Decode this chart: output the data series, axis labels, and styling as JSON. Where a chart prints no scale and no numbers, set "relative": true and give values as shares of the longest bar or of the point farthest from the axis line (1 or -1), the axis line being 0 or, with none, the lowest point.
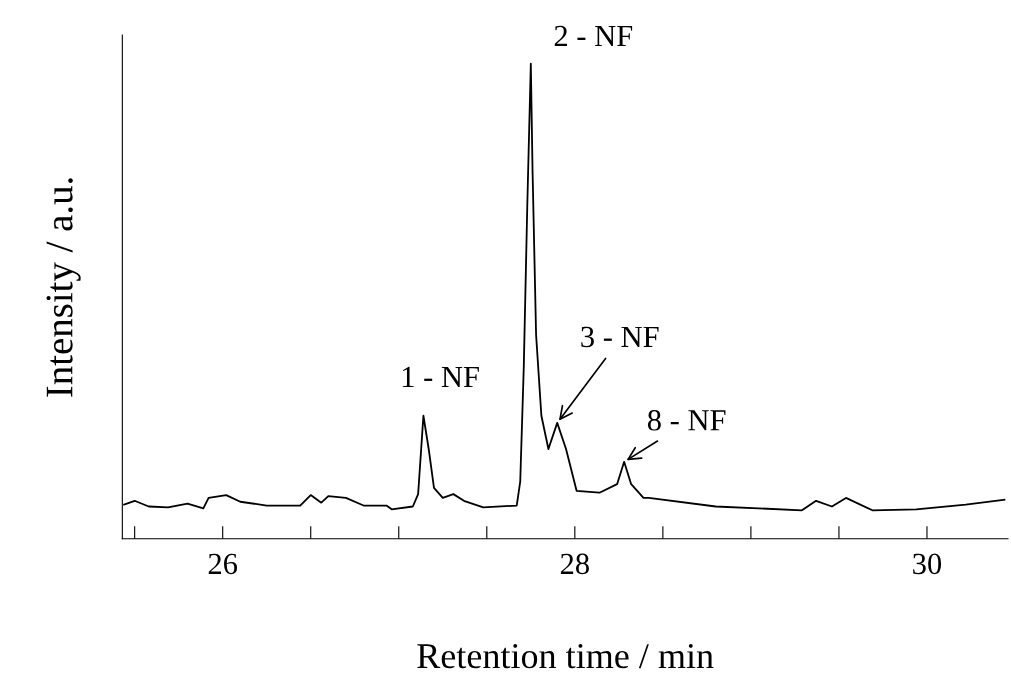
{
  "chart_data": {
    "type": "line",
    "relative": true,
    "xlabel": "Retention time / min",
    "ylabel": "Intensity / a.u.",
    "xlim": [
      25.43,
      30.46
    ],
    "xticks": [
      {
        "value": 25.5,
        "label": null
      },
      26,
      {
        "value": 26.5,
        "label": null
      },
      {
        "value": 27,
        "label": null
      },
      {
        "value": 27.5,
        "label": null
      },
      28,
      {
        "value": 28.5,
        "label": null
      },
      {
        "value": 29,
        "label": null
      },
      {
        "value": 29.5,
        "label": null
      },
      30
    ],
    "tick_labels": "x",
    "grid": false,
    "legend": false,
    "marker": "none",
    "line_style": "solid",
    "series": [
      {
        "color": "#000000",
        "x": [
          25.44,
          25.5,
          25.58,
          25.69,
          25.8,
          25.89,
          25.92,
          26.02,
          26.1,
          26.25,
          26.44,
          26.5,
          26.56,
          26.6,
          26.7,
          26.8,
          26.93,
          26.96,
          27.08,
          27.11,
          27.14,
          27.17,
          27.2,
          27.25,
          27.31,
          27.37,
          27.48,
          27.67,
          27.69,
          27.71,
          27.73,
          27.75,
          27.76,
          27.78,
          27.81,
          27.85,
          27.9,
          27.95,
          28.01,
          28.14,
          28.24,
          28.28,
          28.32,
          28.39,
          28.42,
          28.8,
          29.29,
          29.37,
          29.46,
          29.54,
          29.69,
          29.94,
          30.22,
          30.44
        ],
        "values": [
          0.072,
          0.08,
          0.068,
          0.066,
          0.074,
          0.064,
          0.086,
          0.092,
          0.078,
          0.07,
          0.07,
          0.092,
          0.076,
          0.09,
          0.086,
          0.07,
          0.07,
          0.062,
          0.068,
          0.094,
          0.259,
          0.189,
          0.107,
          0.086,
          0.094,
          0.08,
          0.066,
          0.07,
          0.121,
          0.361,
          0.702,
          1.0,
          0.772,
          0.429,
          0.259,
          0.189,
          0.244,
          0.189,
          0.101,
          0.097,
          0.115,
          0.162,
          0.115,
          0.086,
          0.086,
          0.068,
          0.06,
          0.08,
          0.068,
          0.086,
          0.06,
          0.062,
          0.072,
          0.082
        ]
      }
    ],
    "annotations": [
      {
        "text": "1 - NF",
        "x": 27.14,
        "y": 0.259
      },
      {
        "text": "2 - NF",
        "x": 27.75,
        "y": 1.0
      },
      {
        "text": "3 - NF",
        "x": 27.9,
        "y": 0.244
      },
      {
        "text": "8 - NF",
        "x": 28.28,
        "y": 0.162
      }
    ]
  }
}
